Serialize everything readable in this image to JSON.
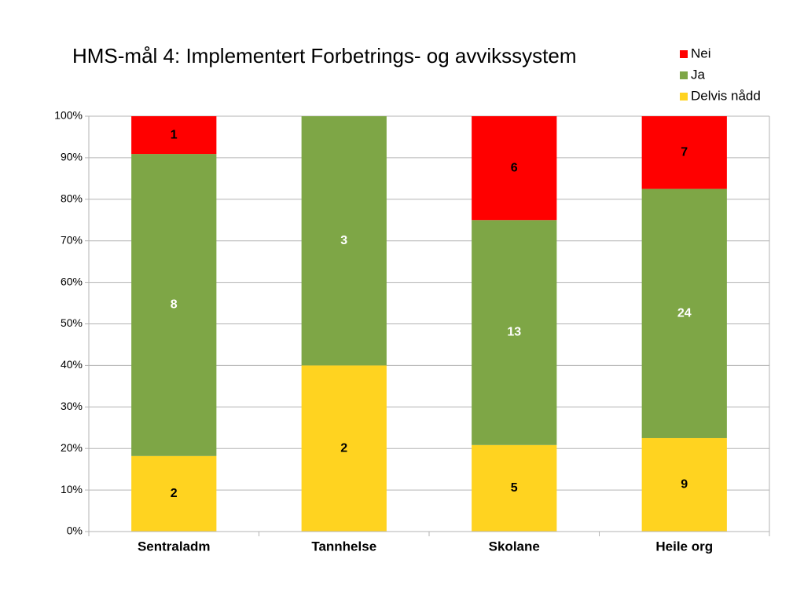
{
  "chart_data": {
    "type": "bar",
    "stacking": "percent",
    "title": "HMS-mål 4: Implementert Forbetrings- og avvikssystem",
    "categories": [
      "Sentraladm",
      "Tannhelse",
      "Skolane",
      "Heile org"
    ],
    "series": [
      {
        "name": "Delvis nådd",
        "color": "#ffd320",
        "label_color": "#000000",
        "values": [
          2,
          2,
          5,
          9
        ]
      },
      {
        "name": "Ja",
        "color": "#7ea646",
        "label_color": "#ffffff",
        "values": [
          8,
          3,
          13,
          24
        ]
      },
      {
        "name": "Nei",
        "color": "#ff0000",
        "label_color": "#000000",
        "values": [
          1,
          null,
          6,
          7
        ]
      }
    ],
    "ylim": [
      0,
      100
    ],
    "yticks": [
      {
        "value": 0,
        "label": "0%"
      },
      {
        "value": 10,
        "label": "10%"
      },
      {
        "value": 20,
        "label": "20%"
      },
      {
        "value": 30,
        "label": "30%"
      },
      {
        "value": 40,
        "label": "40%"
      },
      {
        "value": 50,
        "label": "50%"
      },
      {
        "value": 60,
        "label": "60%"
      },
      {
        "value": 70,
        "label": "70%"
      },
      {
        "value": 80,
        "label": "80%"
      },
      {
        "value": 90,
        "label": "90%"
      },
      {
        "value": 100,
        "label": "100%"
      }
    ],
    "grid": true,
    "legend": "top-right"
  }
}
